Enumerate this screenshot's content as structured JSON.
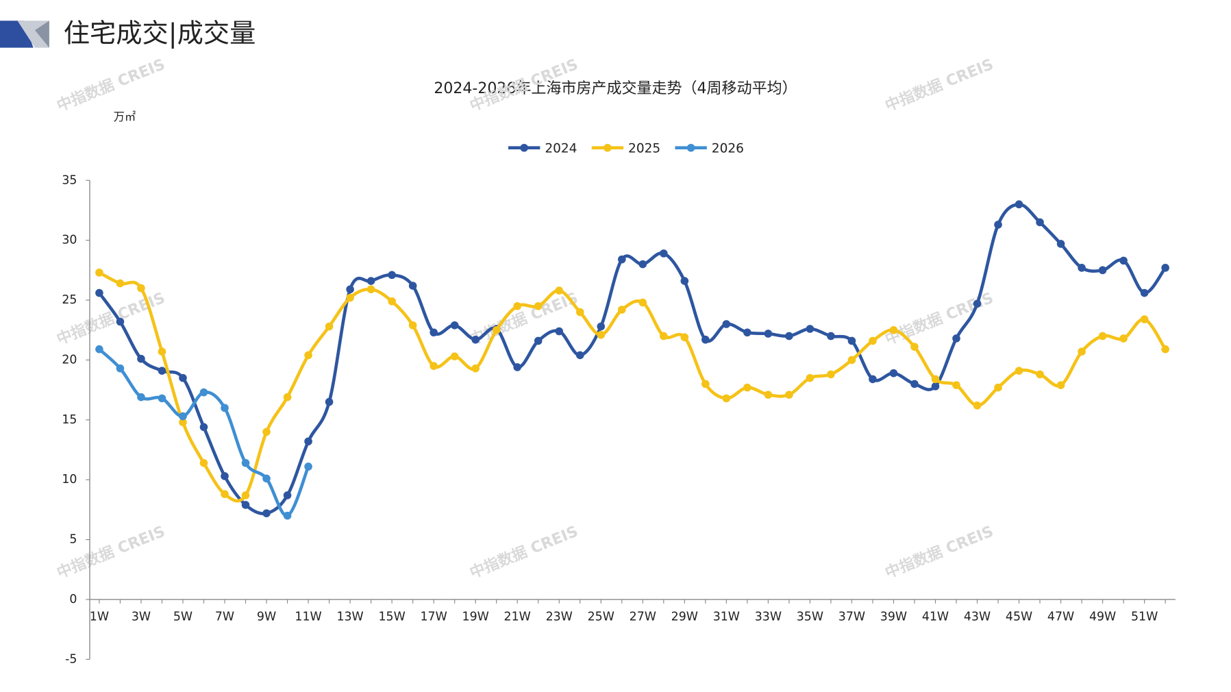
{
  "header": {
    "title": "住宅成交|成交量"
  },
  "watermark": "中指数据 CREIS",
  "chart_data": {
    "type": "line",
    "title": "2024-2026年上海市房产成交量走势（4周移动平均）",
    "y_label": "万㎡",
    "categories": [
      "1W",
      null,
      "3W",
      null,
      "5W",
      null,
      "7W",
      null,
      "9W",
      null,
      "11W",
      null,
      "13W",
      null,
      "15W",
      null,
      "17W",
      null,
      "19W",
      null,
      "21W",
      null,
      "23W",
      null,
      "25W",
      null,
      "27W",
      null,
      "29W",
      null,
      "31W",
      null,
      "33W",
      null,
      "35W",
      null,
      "37W",
      null,
      "39W",
      null,
      "41W",
      null,
      "43W",
      null,
      "45W",
      null,
      "47W",
      null,
      "49W",
      null,
      "51W",
      null
    ],
    "series": [
      {
        "name": "2024",
        "color": "#2e56a0",
        "values": [
          25.6,
          23.2,
          20.1,
          19.1,
          18.5,
          14.4,
          10.3,
          7.9,
          7.2,
          8.7,
          13.2,
          16.5,
          25.9,
          26.6,
          27.1,
          26.2,
          22.3,
          22.9,
          21.7,
          22.6,
          19.4,
          21.6,
          22.4,
          20.4,
          22.8,
          28.4,
          28.0,
          28.9,
          26.6,
          21.7,
          23.0,
          22.3,
          22.2,
          22.0,
          22.6,
          22.0,
          21.6,
          18.4,
          18.9,
          18.0,
          17.8,
          21.8,
          24.7,
          31.3,
          33.0,
          31.5,
          29.7,
          27.7,
          27.5,
          28.3,
          25.6,
          27.7
        ]
      },
      {
        "name": "2025",
        "color": "#f5c218",
        "values": [
          27.3,
          26.4,
          26.0,
          20.7,
          14.8,
          11.4,
          8.8,
          8.7,
          14.0,
          16.9,
          20.4,
          22.8,
          25.2,
          25.9,
          24.9,
          22.9,
          19.5,
          20.3,
          19.3,
          22.5,
          24.5,
          24.5,
          25.8,
          24.0,
          22.1,
          24.2,
          24.8,
          22.0,
          21.9,
          18.0,
          16.8,
          17.7,
          17.1,
          17.1,
          18.5,
          18.8,
          20.0,
          21.6,
          22.5,
          21.1,
          18.4,
          17.9,
          16.2,
          17.7,
          19.1,
          18.8,
          17.9,
          20.7,
          22.0,
          21.8,
          23.4,
          20.9
        ]
      },
      {
        "name": "2026",
        "color": "#3f8fd2",
        "values": [
          20.9,
          19.3,
          16.9,
          16.8,
          15.3,
          17.3,
          16.0,
          11.4,
          10.1,
          7.0,
          11.1,
          null,
          null,
          null,
          null,
          null,
          null,
          null,
          null,
          null,
          null,
          null,
          null,
          null,
          null,
          null,
          null,
          null,
          null,
          null,
          null,
          null,
          null,
          null,
          null,
          null,
          null,
          null,
          null,
          null,
          null,
          null,
          null,
          null,
          null,
          null,
          null,
          null,
          null,
          null,
          null,
          null
        ]
      }
    ],
    "ylim": [
      -5,
      35
    ],
    "yticks": [
      -5,
      0,
      5,
      10,
      15,
      20,
      25,
      30,
      35
    ],
    "grid": false,
    "legend": "top"
  }
}
